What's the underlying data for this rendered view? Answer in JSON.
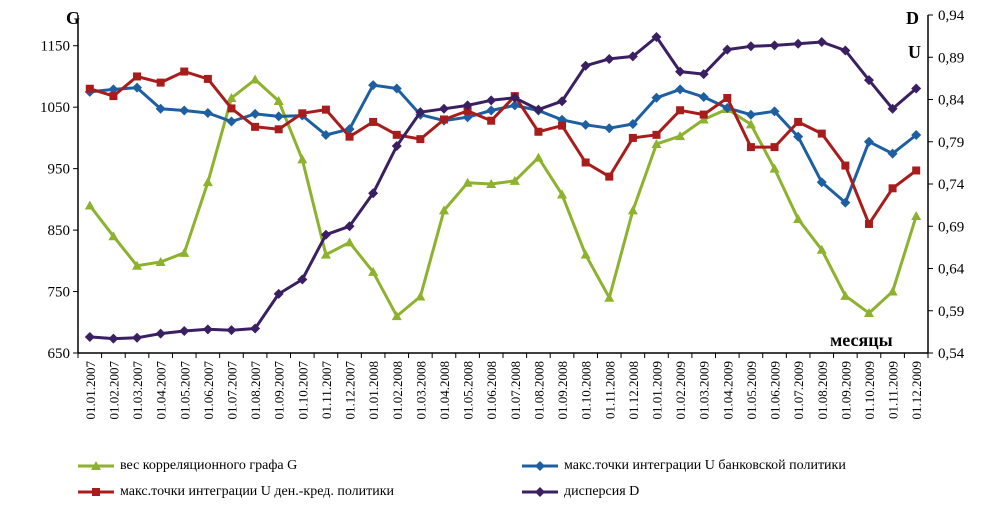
{
  "chart_data": {
    "type": "line",
    "ylabel_left": "G",
    "ylabel_right_top": "D",
    "ylabel_right_u": "U",
    "xlabel": "месяцы",
    "ylim_left": [
      650,
      1200
    ],
    "yticks_left": [
      "650",
      "750",
      "850",
      "950",
      "1050",
      "1150"
    ],
    "ylim_right": [
      0.54,
      0.94
    ],
    "yticks_right": [
      "0,54",
      "0,59",
      "0,64",
      "0,69",
      "0,74",
      "0,79",
      "0,84",
      "0,89",
      "0,94"
    ],
    "categories": [
      "01.01.2007",
      "01.02.2007",
      "01.03.2007",
      "01.04.2007",
      "01.05.2007",
      "01.06.2007",
      "01.07.2007",
      "01.08.2007",
      "01.09.2007",
      "01.10.2007",
      "01.11.2007",
      "01.12.2007",
      "01.01.2008",
      "01.02.2008",
      "01.03.2008",
      "01.04.2008",
      "01.05.2008",
      "01.06.2008",
      "01.07.2008",
      "01.08.2008",
      "01.09.2008",
      "01.10.2008",
      "01.11.2008",
      "01.12.2008",
      "01.01.2009",
      "01.02.2009",
      "01.03.2009",
      "01.04.2009",
      "01.05.2009",
      "01.06.2009",
      "01.07.2009",
      "01.08.2009",
      "01.09.2009",
      "01.10.2009",
      "01.11.2009",
      "01.12.2009"
    ],
    "series": [
      {
        "name": "вес корреляционного графа G",
        "axis": "left",
        "color": "#8db22e",
        "values": [
          890,
          840,
          792,
          798,
          813,
          928,
          1065,
          1095,
          1060,
          965,
          810,
          830,
          782,
          710,
          742,
          882,
          927,
          925,
          930,
          968,
          908,
          810,
          740,
          882,
          990,
          1003,
          1030,
          1047,
          1022,
          950,
          868,
          818,
          743,
          715,
          750,
          873
        ]
      },
      {
        "name": "макс.точки интеграции U банковской политики",
        "axis": "right",
        "color": "#1d5fa0",
        "values": [
          0.849,
          0.852,
          0.854,
          0.829,
          0.827,
          0.824,
          0.814,
          0.823,
          0.82,
          0.821,
          0.798,
          0.805,
          0.857,
          0.853,
          0.822,
          0.815,
          0.819,
          0.827,
          0.833,
          0.827,
          0.816,
          0.81,
          0.806,
          0.811,
          0.842,
          0.852,
          0.843,
          0.83,
          0.822,
          0.826,
          0.796,
          0.742,
          0.718,
          0.79,
          0.776,
          0.798
        ]
      },
      {
        "name": "макс.точки интеграции U ден.-кред. политики",
        "axis": "right",
        "color": "#a81c1c",
        "values": [
          1080,
          1068,
          1100,
          1090,
          1108,
          1096,
          1048,
          1018,
          1014,
          1040,
          1046,
          1002,
          1026,
          1005,
          998,
          1030,
          1044,
          1028,
          1068,
          1010,
          1020,
          960,
          937,
          1000,
          1005,
          1045,
          1038,
          1065,
          985,
          985,
          1026,
          1007,
          955,
          860,
          918,
          947
        ]
      },
      {
        "name": "дисперсия D",
        "axis": "right",
        "color": "#3a1f63",
        "values": [
          0.559,
          0.557,
          0.558,
          0.563,
          0.566,
          0.568,
          0.567,
          0.569,
          0.61,
          0.627,
          0.68,
          0.69,
          0.729,
          0.785,
          0.825,
          0.829,
          0.833,
          0.839,
          0.842,
          0.828,
          0.838,
          0.88,
          0.888,
          0.891,
          0.914,
          0.873,
          0.87,
          0.899,
          0.903,
          0.904,
          0.906,
          0.908,
          0.898,
          0.863,
          0.829,
          0.853
        ]
      }
    ],
    "legend_position": "bottom",
    "grid": false
  }
}
